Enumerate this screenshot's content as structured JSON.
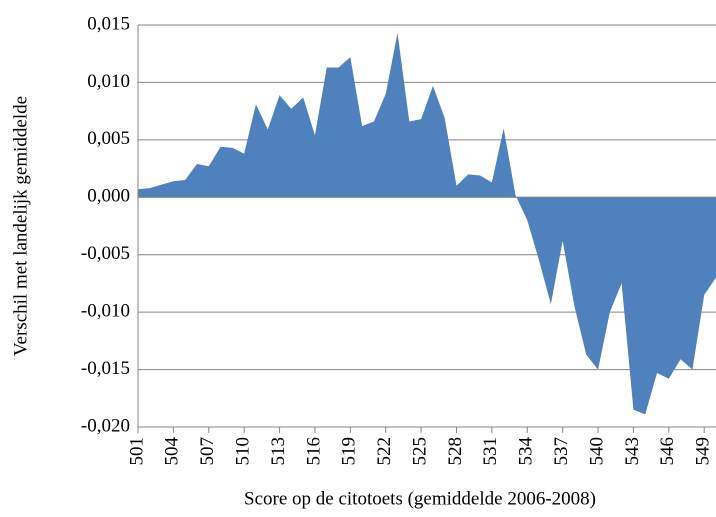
{
  "chart_data": {
    "type": "area",
    "ylabel": "Verschil met  landelijk gemiddelde",
    "xlabel": "Score op de citotoets (gemiddelde 2006-2008)",
    "color": "#4f81bd",
    "grid": true,
    "x": [
      501,
      502,
      503,
      504,
      505,
      506,
      507,
      508,
      509,
      510,
      511,
      512,
      513,
      514,
      515,
      516,
      517,
      518,
      519,
      520,
      521,
      522,
      523,
      524,
      525,
      526,
      527,
      528,
      529,
      530,
      531,
      532,
      533,
      534,
      535,
      536,
      537,
      538,
      539,
      540,
      541,
      542,
      543,
      544,
      545,
      546,
      547,
      548,
      549,
      550
    ],
    "values": [
      0.0007,
      0.0008,
      0.0011,
      0.0014,
      0.0015,
      0.0029,
      0.0027,
      0.0044,
      0.0043,
      0.0038,
      0.0081,
      0.0059,
      0.0089,
      0.0077,
      0.0087,
      0.0054,
      0.0113,
      0.0113,
      0.0122,
      0.0062,
      0.0066,
      0.009,
      0.0143,
      0.0066,
      0.0068,
      0.0097,
      0.0069,
      0.001,
      0.002,
      0.0019,
      0.0013,
      0.006,
      0.0002,
      -0.002,
      -0.0055,
      -0.0093,
      -0.0038,
      -0.0095,
      -0.0137,
      -0.015,
      -0.01,
      -0.0075,
      -0.0185,
      -0.0189,
      -0.0153,
      -0.0158,
      -0.0141,
      -0.015,
      -0.0085,
      -0.007
    ],
    "xlim": [
      501,
      550
    ],
    "xticks": [
      501,
      504,
      507,
      510,
      513,
      516,
      519,
      522,
      525,
      528,
      531,
      534,
      537,
      540,
      543,
      546,
      549
    ],
    "ylim": [
      -0.02,
      0.015
    ],
    "yticks": [
      {
        "value": 0.015,
        "label": "0,015"
      },
      {
        "value": 0.01,
        "label": "0,010"
      },
      {
        "value": 0.005,
        "label": "0,005"
      },
      {
        "value": 0,
        "label": "0,000"
      },
      {
        "value": -0.005,
        "label": "-0,005"
      },
      {
        "value": -0.01,
        "label": "-0,010"
      },
      {
        "value": -0.015,
        "label": "-0,015"
      },
      {
        "value": -0.02,
        "label": "-0,020"
      }
    ]
  }
}
